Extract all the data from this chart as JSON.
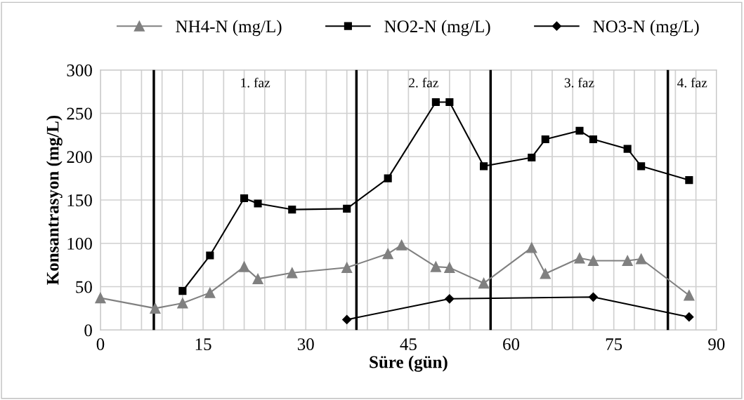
{
  "chart_data": {
    "type": "line",
    "xlabel": "Süre (gün)",
    "ylabel": "Konsantrasyon (mg/L)",
    "xlim": [
      0,
      90
    ],
    "ylim": [
      0,
      300
    ],
    "xticks": [
      0,
      {
        "value": 3,
        "label": null
      },
      {
        "value": 6,
        "label": null
      },
      {
        "value": 9,
        "label": null
      },
      {
        "value": 12,
        "label": null
      },
      15,
      {
        "value": 18,
        "label": null
      },
      {
        "value": 21,
        "label": null
      },
      {
        "value": 24,
        "label": null
      },
      {
        "value": 27,
        "label": null
      },
      30,
      {
        "value": 33,
        "label": null
      },
      {
        "value": 36,
        "label": null
      },
      {
        "value": 39,
        "label": null
      },
      {
        "value": 42,
        "label": null
      },
      45,
      {
        "value": 48,
        "label": null
      },
      {
        "value": 51,
        "label": null
      },
      {
        "value": 54,
        "label": null
      },
      {
        "value": 57,
        "label": null
      },
      60,
      {
        "value": 63,
        "label": null
      },
      {
        "value": 66,
        "label": null
      },
      {
        "value": 69,
        "label": null
      },
      {
        "value": 72,
        "label": null
      },
      75,
      {
        "value": 78,
        "label": null
      },
      {
        "value": 81,
        "label": null
      },
      {
        "value": 84,
        "label": null
      },
      {
        "value": 87,
        "label": null
      },
      90
    ],
    "yticks": [
      0,
      50,
      100,
      150,
      200,
      250,
      300
    ],
    "grid": true,
    "legend": "top",
    "line_style": "solid",
    "series": [
      {
        "name": "NH4-N (mg/L)",
        "color": "#808080",
        "marker": "triangle",
        "x": [
          0,
          8,
          12,
          16,
          21,
          23,
          28,
          36,
          42,
          44,
          49,
          51,
          56,
          63,
          65,
          70,
          72,
          77,
          79,
          86
        ],
        "values": [
          37,
          25,
          31,
          43,
          73,
          59,
          66,
          72,
          88,
          98,
          73,
          72,
          54,
          95,
          65,
          83,
          80,
          80,
          82,
          40
        ]
      },
      {
        "name": "NO2-N (mg/L)",
        "color": "#000000",
        "marker": "square",
        "x": [
          12,
          16,
          21,
          23,
          28,
          36,
          42,
          49,
          51,
          56,
          63,
          65,
          70,
          72,
          77,
          79,
          86
        ],
        "values": [
          45,
          86,
          152,
          146,
          139,
          140,
          175,
          263,
          263,
          189,
          199,
          220,
          230,
          220,
          209,
          189,
          173
        ]
      },
      {
        "name": "NO3-N (mg/L)",
        "color": "#000000",
        "marker": "diamond",
        "x": [
          36,
          51,
          72,
          86
        ],
        "values": [
          12,
          36,
          38,
          15
        ]
      }
    ],
    "ref_lines": [
      {
        "axis": "x",
        "value": 7.8,
        "color": "#000000"
      },
      {
        "axis": "x",
        "value": 37.4,
        "color": "#000000"
      },
      {
        "axis": "x",
        "value": 57,
        "color": "#000000"
      },
      {
        "axis": "x",
        "value": 82.9,
        "color": "#000000"
      }
    ],
    "annotations": [
      "1. faz",
      "2. faz",
      "3. faz",
      "4. faz"
    ]
  }
}
